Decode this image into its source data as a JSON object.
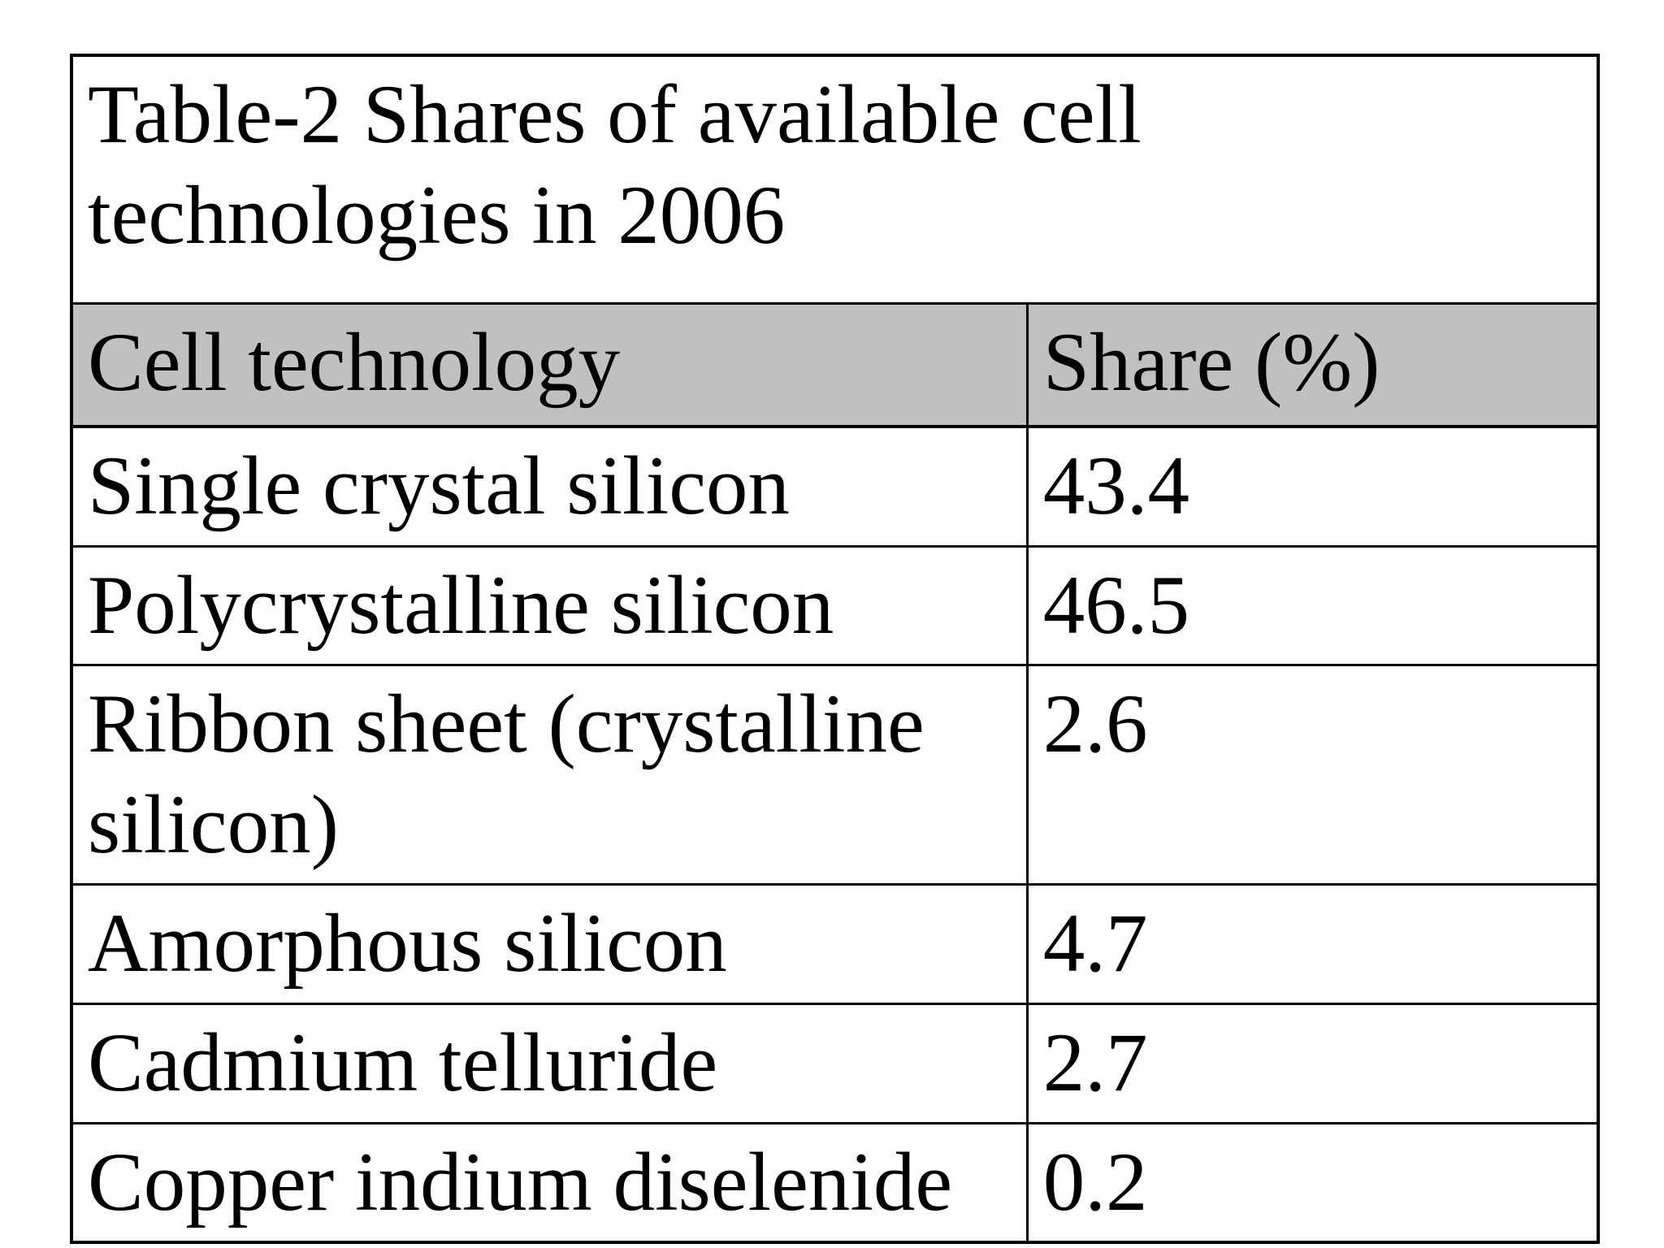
{
  "table": {
    "title": "Table-2 Shares of available cell technologies in 2006",
    "columns": [
      {
        "label": "Cell technology"
      },
      {
        "label": "Share (%)"
      }
    ],
    "rows": [
      {
        "technology": "Single crystal silicon",
        "share": "43.4"
      },
      {
        "technology": "Polycrystalline silicon",
        "share": "46.5"
      },
      {
        "technology": "Ribbon sheet (crystalline silicon)",
        "share": "2.6"
      },
      {
        "technology": "Amorphous silicon",
        "share": "4.7"
      },
      {
        "technology": "Cadmium telluride",
        "share": "2.7"
      },
      {
        "technology": "Copper indium diselenide",
        "share": "0.2"
      }
    ],
    "colors": {
      "header_background": "#c0c0c0",
      "border": "#000000",
      "page_background": "#ffffff",
      "text": "#000000"
    }
  }
}
